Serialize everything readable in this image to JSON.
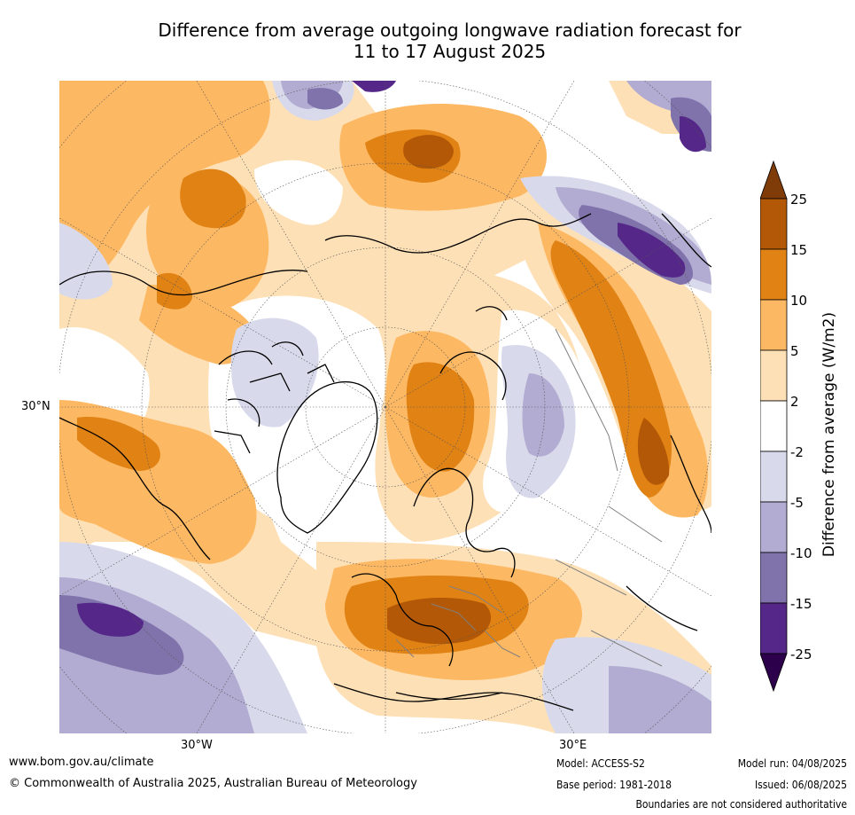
{
  "title": {
    "line1": "Difference from average outgoing longwave radiation forecast for",
    "line2": "11 to 17 August 2025"
  },
  "axis_labels": {
    "lat_30n": "30°N",
    "lon_30w": "30°W",
    "lon_30e": "30°E"
  },
  "colorbar": {
    "label": "Difference from average (W/m2)",
    "ticks": [
      "25",
      "15",
      "10",
      "5",
      "2",
      "-2",
      "-5",
      "-10",
      "-15",
      "-25"
    ],
    "colors": {
      "over": "#7f3b08",
      "15_25": "#b35806",
      "10_15": "#e08214",
      "5_10": "#fdb863",
      "2_5": "#fee0b6",
      "m2_2": "#ffffff",
      "m5_m2": "#d8daeb",
      "m10_m5": "#b2abd2",
      "m15_m10": "#8073ac",
      "m25_m15": "#542788",
      "under": "#2d004b"
    }
  },
  "footer": {
    "website": "www.bom.gov.au/climate",
    "copyright": "© Commonwealth of Australia 2025, Australian Bureau of Meteorology",
    "model": "Model: ACCESS-S2",
    "base_period": "Base period: 1981-2018",
    "model_run": "Model run: 04/08/2025",
    "issued": "Issued: 06/08/2025",
    "disclaimer": "Boundaries are not considered authoritative"
  }
}
